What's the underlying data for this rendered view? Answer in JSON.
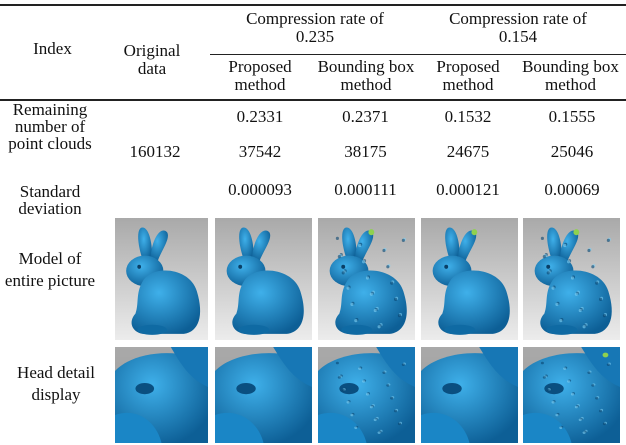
{
  "table": {
    "header": {
      "index": "Index",
      "original": "Original data",
      "groups": [
        {
          "title": "Compression rate of 0.235",
          "methods": [
            "Proposed method",
            "Bounding box method"
          ]
        },
        {
          "title": "Compression rate of 0.154",
          "methods": [
            "Proposed method",
            "Bounding box method"
          ]
        }
      ]
    },
    "rows": [
      {
        "label": "Remaining number of point clouds",
        "original": "160132",
        "ratios": [
          "0.2331",
          "0.2371",
          "0.1532",
          "0.1555"
        ],
        "counts": [
          "37542",
          "38175",
          "24675",
          "25046"
        ]
      },
      {
        "label": "Standard deviation",
        "values": [
          "0.000093",
          "0.000111",
          "0.000121",
          "0.00069"
        ]
      },
      {
        "label": "Model of entire picture"
      },
      {
        "label": "Head detail display"
      }
    ]
  }
}
